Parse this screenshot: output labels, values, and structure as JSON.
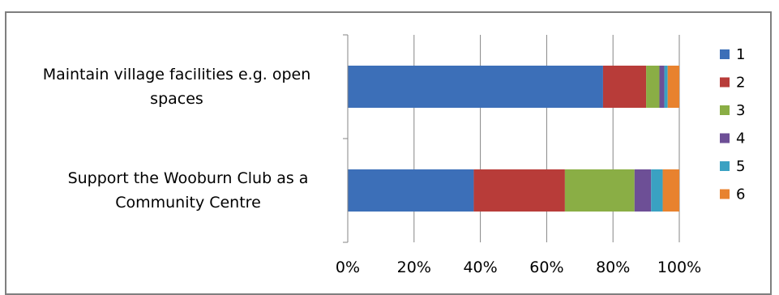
{
  "chart_data": {
    "type": "bar",
    "stacked": "percent",
    "orientation": "horizontal",
    "categories": [
      "Maintain village facilities e.g. open spaces",
      "Support the Wooburn Club as a Community Centre"
    ],
    "category_lines": [
      [
        "Maintain village facilities e.g. open",
        "spaces"
      ],
      [
        "Support the Wooburn Club as a",
        "Community Centre"
      ]
    ],
    "series": [
      {
        "name": "1",
        "color": "#3C6FB8",
        "values": [
          77,
          38
        ]
      },
      {
        "name": "2",
        "color": "#B83C39",
        "values": [
          13,
          27.5
        ]
      },
      {
        "name": "3",
        "color": "#8AAE45",
        "values": [
          4,
          21
        ]
      },
      {
        "name": "4",
        "color": "#6D4F96",
        "values": [
          1.5,
          5
        ]
      },
      {
        "name": "5",
        "color": "#3AA1C2",
        "values": [
          1,
          3.5
        ]
      },
      {
        "name": "6",
        "color": "#E8822E",
        "values": [
          3.5,
          5
        ]
      }
    ],
    "xlim": [
      0,
      100
    ],
    "x_ticks": [
      "0%",
      "20%",
      "40%",
      "60%",
      "80%",
      "100%"
    ],
    "grid": "vertical",
    "legend": "right",
    "title": "",
    "xlabel": "",
    "ylabel": ""
  }
}
